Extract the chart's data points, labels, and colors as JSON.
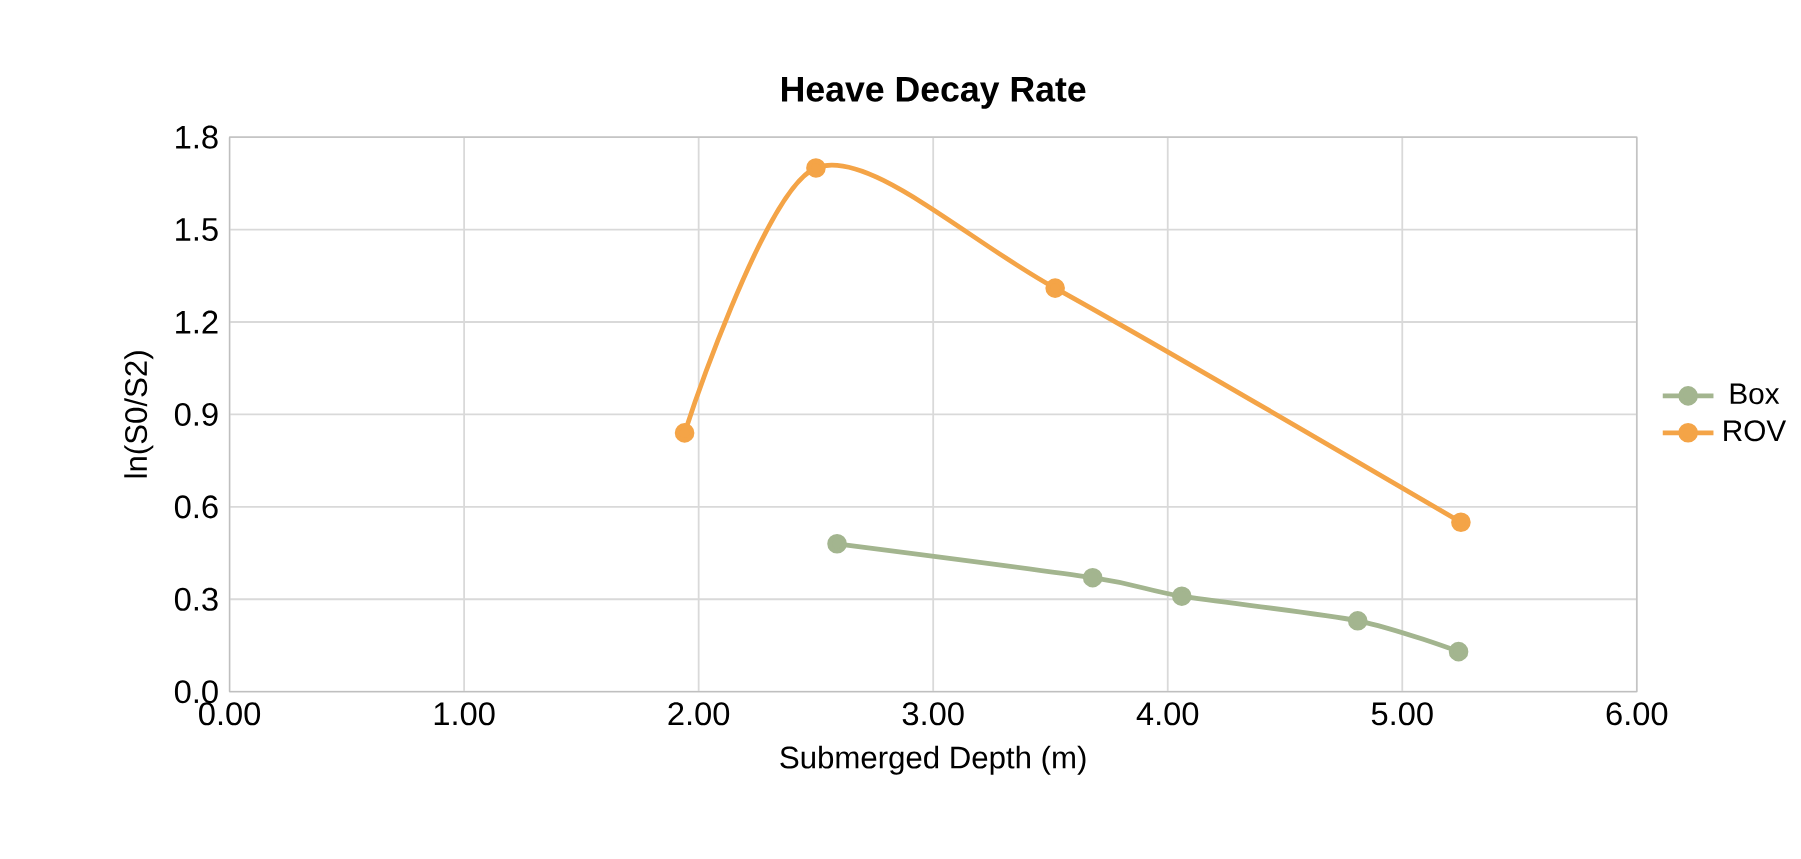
{
  "chart_data": {
    "type": "line",
    "title": "Heave Decay Rate",
    "xlabel": "Submerged Depth (m)",
    "ylabel": "ln(S0/S2)",
    "series": [
      {
        "name": "Box",
        "color": "#a3b58f",
        "x": [
          2.59,
          3.68,
          4.06,
          4.81,
          5.24
        ],
        "values": [
          0.48,
          0.37,
          0.31,
          0.23,
          0.13
        ]
      },
      {
        "name": "ROV",
        "color": "#f4a447",
        "x": [
          1.94,
          2.5,
          3.52,
          5.25
        ],
        "values": [
          0.84,
          1.7,
          1.31,
          0.55
        ]
      }
    ],
    "xlim": [
      0,
      6
    ],
    "ylim": [
      0,
      1.8
    ],
    "xticks": [
      {
        "value": 0,
        "label": "0.00"
      },
      {
        "value": 1,
        "label": "1.00"
      },
      {
        "value": 2,
        "label": "2.00"
      },
      {
        "value": 3,
        "label": "3.00"
      },
      {
        "value": 4,
        "label": "4.00"
      },
      {
        "value": 5,
        "label": "5.00"
      },
      {
        "value": 6,
        "label": "6.00"
      }
    ],
    "yticks": [
      {
        "value": 0,
        "label": "0.0"
      },
      {
        "value": 0.3,
        "label": "0.3"
      },
      {
        "value": 0.6,
        "label": "0.6"
      },
      {
        "value": 0.9,
        "label": "0.9"
      },
      {
        "value": 1.2,
        "label": "1.2"
      },
      {
        "value": 1.5,
        "label": "1.5"
      },
      {
        "value": 1.8,
        "label": "1.8"
      }
    ],
    "grid": true,
    "legend": "right",
    "marker": "circle"
  }
}
